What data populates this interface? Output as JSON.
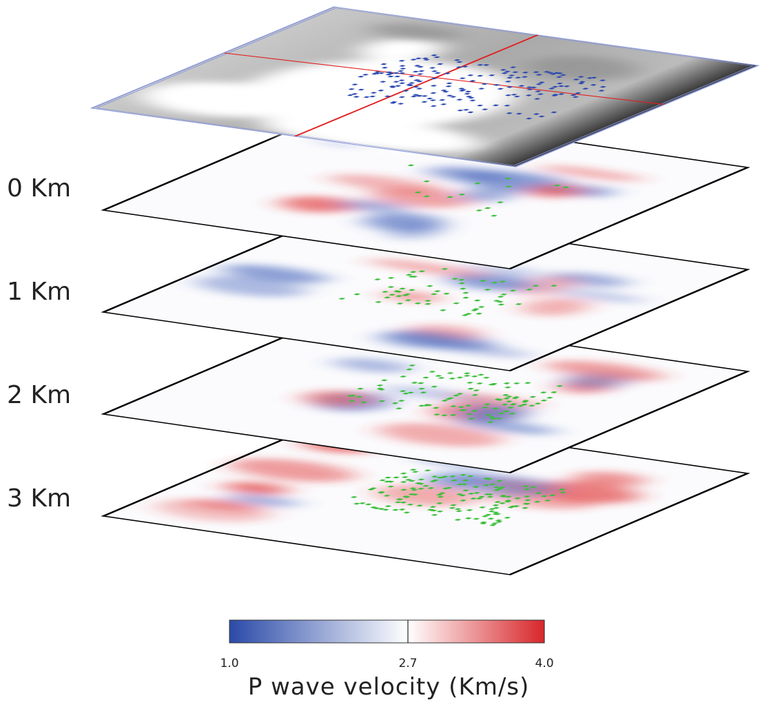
{
  "layers": [
    {
      "label": "0 Km"
    },
    {
      "label": "1 Km"
    },
    {
      "label": "2 Km"
    },
    {
      "label": "3 Km"
    }
  ],
  "colorbar": {
    "title": "P wave velocity (Km/s)",
    "range": [
      1.0,
      4.0
    ],
    "ticks": [
      {
        "value": 1.0,
        "label": "1.0"
      },
      {
        "value": 2.7,
        "label": "2.7"
      },
      {
        "value": 4.0,
        "label": "4.0"
      }
    ]
  }
}
